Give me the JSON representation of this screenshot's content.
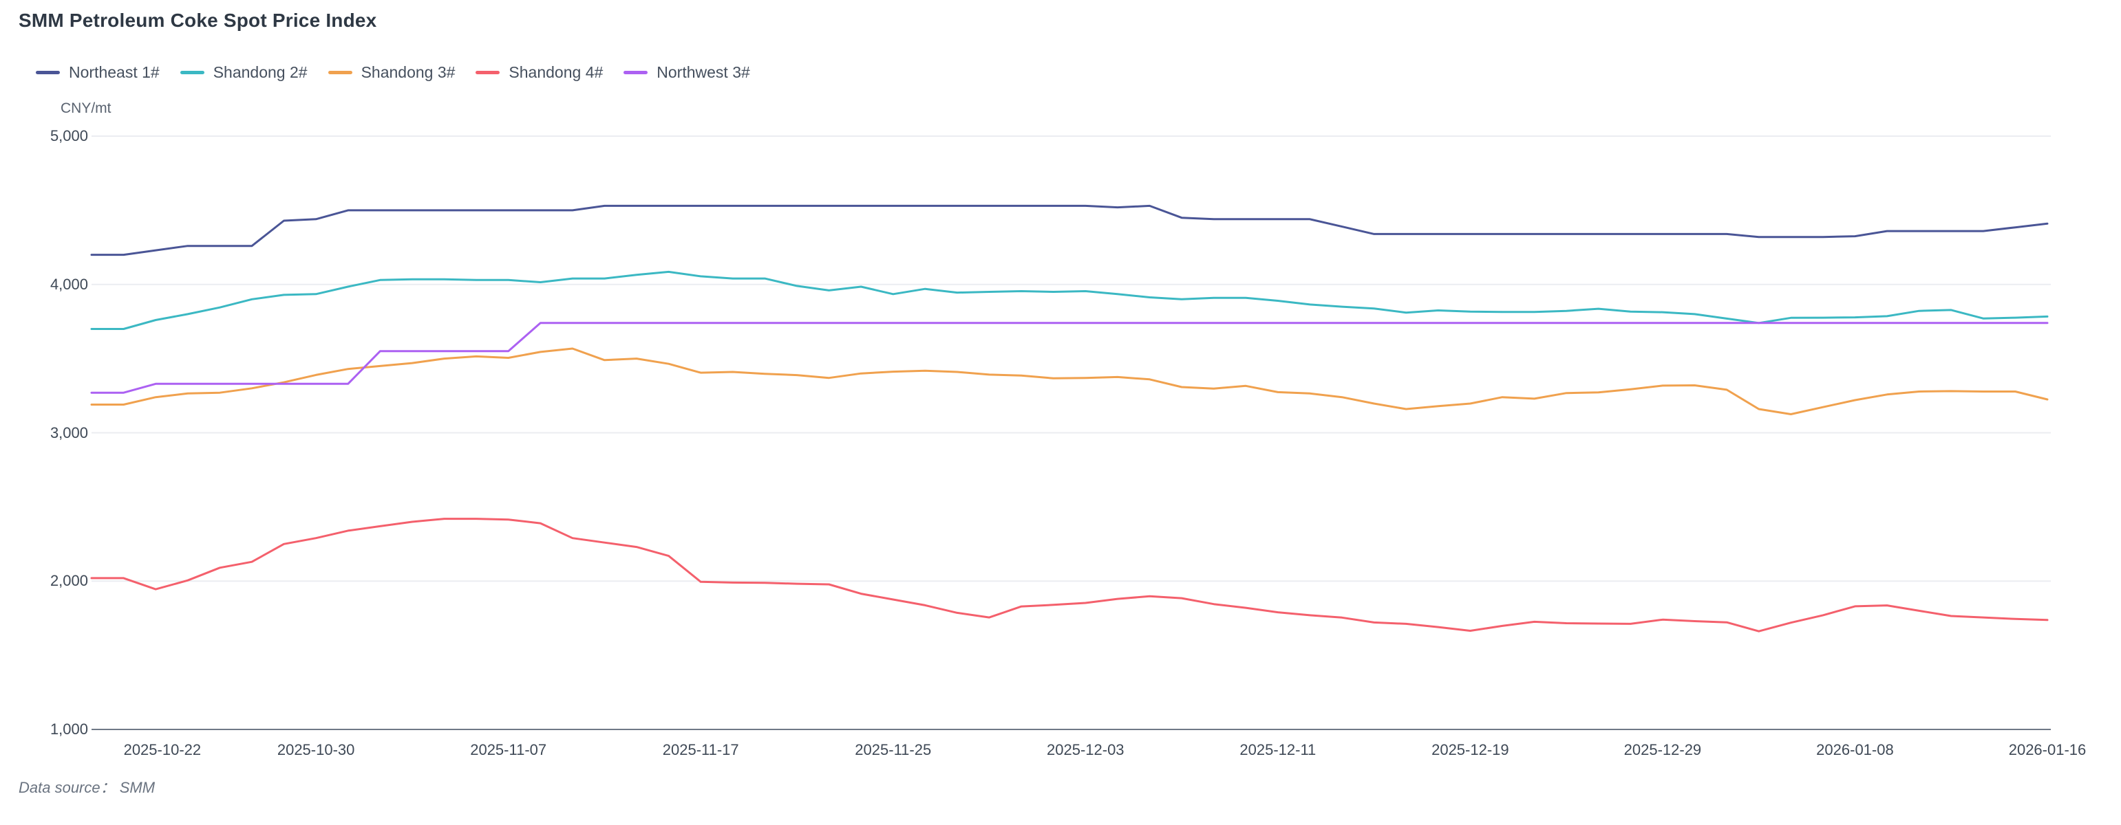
{
  "title": "SMM Petroleum Coke Spot Price Index",
  "source_note": "Data source： SMM",
  "chart_data": {
    "type": "line",
    "title": "SMM Petroleum Coke Spot Price Index",
    "unit_label": "CNY/mt",
    "legend_position": "top-left",
    "grid": true,
    "colors": {
      "grid_line": "#ebedf1",
      "axis_line": "#6f7887",
      "axis_text": "#3f4956",
      "title_text": "#2e3844"
    },
    "y_axis": {
      "min": 1000,
      "max": 5000,
      "step": 1000,
      "tick_values": [
        5000,
        4000,
        3000,
        2000,
        1000
      ],
      "tick_labels": [
        "5,000",
        "4,000",
        "3,000",
        "2,000",
        "1,000"
      ]
    },
    "x_axis": {
      "num_points": 62,
      "tick_indices": [
        1,
        7,
        13,
        19,
        25,
        31,
        37,
        43,
        49,
        55,
        61
      ],
      "tick_labels": [
        "2025-10-22",
        "2025-10-30",
        "2025-11-07",
        "2025-11-17",
        "2025-11-25",
        "2025-12-03",
        "2025-12-11",
        "2025-12-19",
        "2025-12-29",
        "2026-01-08",
        "2026-01-16"
      ]
    },
    "series": [
      {
        "name": "Northeast 1#",
        "color": "#4a5596",
        "values": [
          4200,
          4200,
          4230,
          4260,
          4260,
          4260,
          4430,
          4440,
          4500,
          4500,
          4500,
          4500,
          4500,
          4500,
          4500,
          4500,
          4530,
          4530,
          4530,
          4530,
          4530,
          4530,
          4530,
          4530,
          4530,
          4530,
          4530,
          4530,
          4530,
          4530,
          4530,
          4530,
          4520,
          4530,
          4450,
          4440,
          4440,
          4440,
          4440,
          4390,
          4340,
          4340,
          4340,
          4340,
          4340,
          4340,
          4340,
          4340,
          4340,
          4340,
          4340,
          4340,
          4320,
          4320,
          4320,
          4325,
          4360,
          4360,
          4360,
          4360,
          4385,
          4410
        ]
      },
      {
        "name": "Shandong 2#",
        "color": "#3bb8c3",
        "values": [
          3700,
          3700,
          3760,
          3800,
          3845,
          3900,
          3930,
          3935,
          3985,
          4030,
          4035,
          4035,
          4030,
          4030,
          4015,
          4040,
          4040,
          4065,
          4085,
          4055,
          4040,
          4040,
          3990,
          3960,
          3985,
          3935,
          3970,
          3945,
          3950,
          3955,
          3950,
          3955,
          3935,
          3913,
          3900,
          3910,
          3910,
          3890,
          3865,
          3850,
          3838,
          3810,
          3825,
          3817,
          3815,
          3815,
          3822,
          3836,
          3817,
          3813,
          3800,
          3770,
          3740,
          3775,
          3776,
          3778,
          3786,
          3822,
          3828,
          3771,
          3776,
          3784
        ]
      },
      {
        "name": "Shandong 3#",
        "color": "#f0a14e",
        "values": [
          3190,
          3190,
          3240,
          3265,
          3270,
          3300,
          3340,
          3390,
          3430,
          3450,
          3470,
          3500,
          3515,
          3505,
          3545,
          3568,
          3490,
          3500,
          3465,
          3405,
          3410,
          3397,
          3389,
          3370,
          3400,
          3412,
          3418,
          3410,
          3392,
          3386,
          3367,
          3370,
          3376,
          3360,
          3308,
          3298,
          3316,
          3274,
          3265,
          3240,
          3197,
          3160,
          3180,
          3197,
          3240,
          3230,
          3268,
          3272,
          3293,
          3318,
          3320,
          3290,
          3160,
          3125,
          3173,
          3220,
          3258,
          3278,
          3281,
          3278,
          3278,
          3225
        ]
      },
      {
        "name": "Shandong 4#",
        "color": "#f4606c",
        "values": [
          2020,
          2020,
          1945,
          2005,
          2090,
          2130,
          2250,
          2290,
          2340,
          2370,
          2400,
          2420,
          2420,
          2415,
          2390,
          2290,
          2260,
          2230,
          2170,
          1995,
          1990,
          1988,
          1982,
          1978,
          1915,
          1876,
          1837,
          1786,
          1755,
          1829,
          1840,
          1853,
          1880,
          1898,
          1885,
          1845,
          1820,
          1790,
          1770,
          1754,
          1721,
          1712,
          1690,
          1665,
          1698,
          1726,
          1716,
          1714,
          1712,
          1740,
          1730,
          1722,
          1662,
          1720,
          1770,
          1830,
          1836,
          1800,
          1765,
          1755,
          1745,
          1738
        ]
      },
      {
        "name": "Northwest 3#",
        "color": "#ac61f2",
        "values": [
          3270,
          3270,
          3330,
          3330,
          3330,
          3330,
          3330,
          3330,
          3330,
          3550,
          3550,
          3550,
          3550,
          3550,
          3740,
          3740,
          3740,
          3740,
          3740,
          3740,
          3740,
          3740,
          3740,
          3740,
          3740,
          3740,
          3740,
          3740,
          3740,
          3740,
          3740,
          3740,
          3740,
          3740,
          3740,
          3740,
          3740,
          3740,
          3740,
          3740,
          3740,
          3740,
          3740,
          3740,
          3740,
          3740,
          3740,
          3740,
          3740,
          3740,
          3740,
          3740,
          3740,
          3740,
          3740,
          3740,
          3740,
          3740,
          3740,
          3740,
          3740,
          3740
        ]
      }
    ]
  }
}
